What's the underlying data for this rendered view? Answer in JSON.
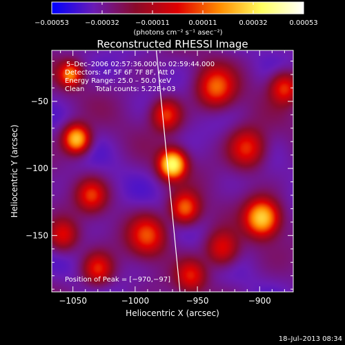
{
  "chart_data": {
    "type": "heatmap",
    "title": "Reconstructed RHESSI Image",
    "xlabel": "Heliocentric X (arcsec)",
    "ylabel": "Heliocentric Y (arcsec)",
    "xlim": [
      -1067,
      -873
    ],
    "ylim": [
      -192,
      -12
    ],
    "x_ticks": [
      -1050,
      -1000,
      -950,
      -900
    ],
    "x_tick_labels": [
      "−1050",
      "−1000",
      "−950",
      "−900"
    ],
    "y_ticks": [
      -50,
      -100,
      -150
    ],
    "y_tick_labels": [
      "−50",
      "−100",
      "−150"
    ],
    "colorbar": {
      "range": [
        -0.00053,
        0.00053
      ],
      "tick_labels": [
        "−0.00053",
        "−0.00032",
        "−0.00011",
        "0.00011",
        "0.00032",
        "0.00053"
      ],
      "unit_label": "(photons cm⁻² s⁻¹ asec⁻²)",
      "colors": [
        "#0000ff",
        "#6a1bb5",
        "#8a0a2a",
        "#e00000",
        "#ff8c00",
        "#ffff60",
        "#ffffff"
      ]
    },
    "annotations": {
      "time_range": "5–Dec–2006 02:57:36.000 to 02:59:44.000",
      "detectors": "Detectors: 4F 5F 6F 7F 8F, Att 0",
      "energy_range": "Energy Range: 25.0 – 50.0 keV",
      "clean_info": "Clean     Total counts: 5.22E+03",
      "peak_position": "Position of Peak = [−970,−97]"
    },
    "peak": {
      "x": -970,
      "y": -97
    },
    "limb_line": {
      "from": [
        -983,
        -12
      ],
      "to": [
        -964,
        -192
      ]
    },
    "sources": [
      {
        "x": -970,
        "y": -97,
        "amplitude": 1.0,
        "sigma": 7
      },
      {
        "x": -1047,
        "y": -78,
        "amplitude": 0.8,
        "sigma": 7
      },
      {
        "x": -898,
        "y": -137,
        "amplitude": 0.8,
        "sigma": 9
      },
      {
        "x": -1052,
        "y": -30,
        "amplitude": 0.55,
        "sigma": 6
      },
      {
        "x": -960,
        "y": -130,
        "amplitude": 0.55,
        "sigma": 8
      },
      {
        "x": -935,
        "y": -40,
        "amplitude": 0.5,
        "sigma": 10
      },
      {
        "x": -975,
        "y": -60,
        "amplitude": 0.45,
        "sigma": 8
      },
      {
        "x": -990,
        "y": -150,
        "amplitude": 0.45,
        "sigma": 10
      },
      {
        "x": -1035,
        "y": -120,
        "amplitude": 0.4,
        "sigma": 8
      },
      {
        "x": -1030,
        "y": -175,
        "amplitude": 0.4,
        "sigma": 8
      },
      {
        "x": -930,
        "y": -160,
        "amplitude": 0.4,
        "sigma": 9
      },
      {
        "x": -910,
        "y": -85,
        "amplitude": 0.45,
        "sigma": 10
      },
      {
        "x": -880,
        "y": -40,
        "amplitude": 0.45,
        "sigma": 8
      },
      {
        "x": -955,
        "y": -180,
        "amplitude": 0.35,
        "sigma": 8
      },
      {
        "x": -1058,
        "y": -150,
        "amplitude": 0.35,
        "sigma": 8
      }
    ]
  },
  "footer": {
    "timestamp": "18–Jul–2013 08:34"
  }
}
